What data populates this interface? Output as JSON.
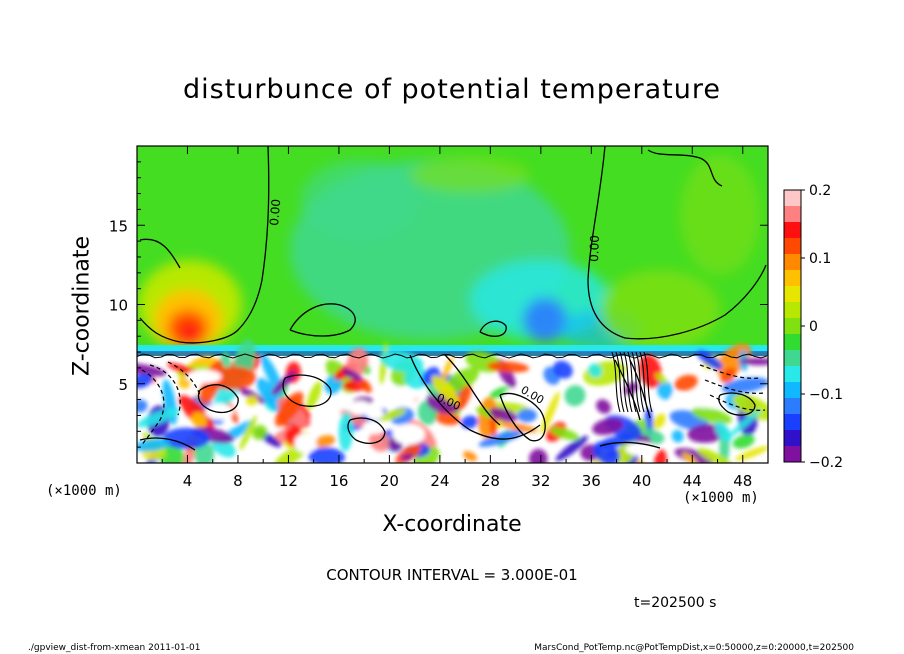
{
  "chart_data": {
    "type": "heatmap",
    "title": "disturbunce of potential temperature",
    "xlabel": "X-coordinate",
    "ylabel": "Z-coordinate",
    "x_unit": "(×1000 m)",
    "y_unit": "(×1000 m)",
    "xlim": [
      0,
      50
    ],
    "ylim": [
      0,
      20
    ],
    "x_ticks": [
      4,
      8,
      12,
      16,
      20,
      24,
      28,
      32,
      36,
      40,
      44,
      48
    ],
    "y_ticks": [
      5,
      10,
      15
    ],
    "colorbar": {
      "min": -0.2,
      "max": 0.2,
      "ticks": [
        0.2,
        0.1,
        0,
        -0.1,
        -0.2
      ],
      "tick_labels": [
        "0.2",
        "0.1",
        "0",
        "−0.1",
        "−0.2"
      ],
      "colors": [
        "#8010a0",
        "#3010c8",
        "#1a40ff",
        "#2c7cff",
        "#10b8ff",
        "#28e8e8",
        "#40d890",
        "#30dc30",
        "#80e010",
        "#b8e800",
        "#e6e600",
        "#ffc000",
        "#ff8a00",
        "#ff4800",
        "#ff1010",
        "#ff8080",
        "#ffc8c8"
      ]
    },
    "contour_label": "0.00",
    "contour_interval_text": "CONTOUR INTERVAL = 3.000E-01",
    "time_text": "t=202500 s"
  },
  "footer": {
    "left": "./gpview_dist-from-xmean  2011-01-01",
    "right": "MarsCond_PotTemp.nc@PotTempDist,x=0:50000,z=0:20000,t=202500"
  }
}
